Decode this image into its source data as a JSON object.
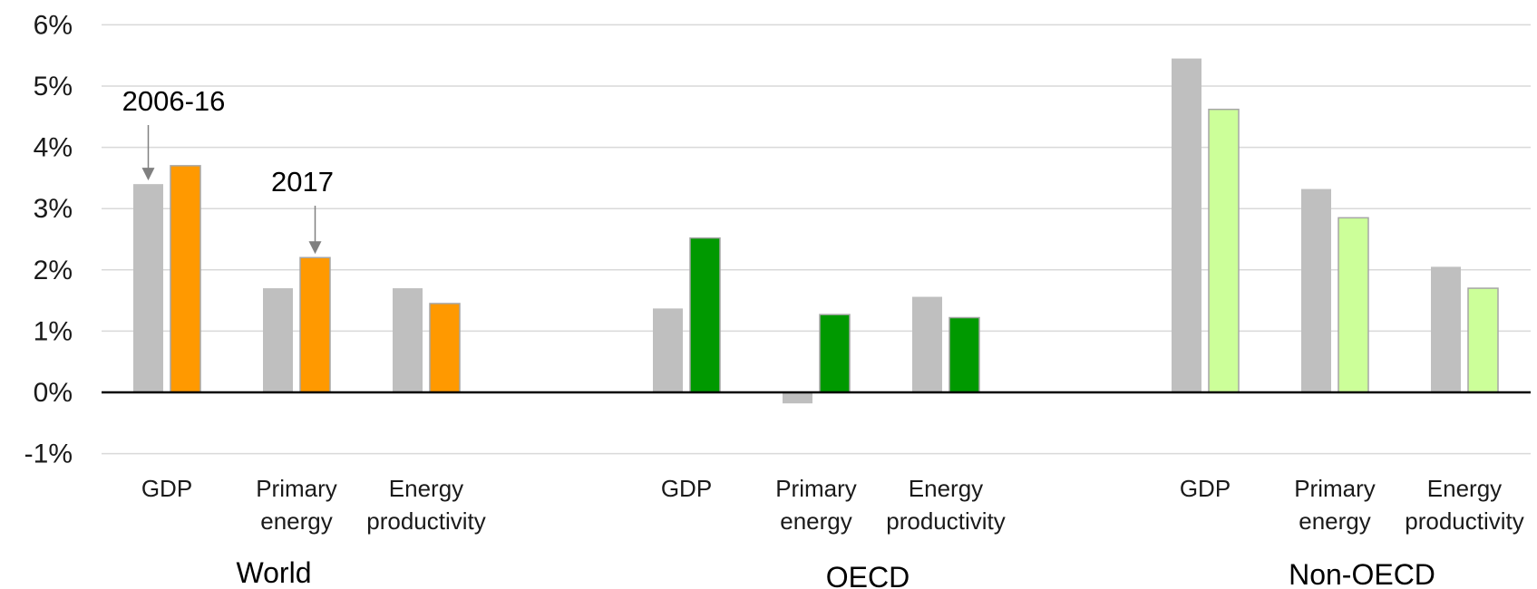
{
  "chart_data": {
    "type": "bar",
    "title": "",
    "xlabel": "",
    "ylabel": "",
    "ylim": [
      -1,
      6
    ],
    "yticks": [
      -1,
      0,
      1,
      2,
      3,
      4,
      5,
      6
    ],
    "ytick_labels": [
      "-1%",
      "0%",
      "1%",
      "2%",
      "3%",
      "4%",
      "5%",
      "6%"
    ],
    "grid": true,
    "legend": "none",
    "series": [
      {
        "name": "2006-16",
        "color": "#bfbfbf"
      },
      {
        "name": "2017",
        "colors_by_group": [
          "#ff9900",
          "#009900",
          "#ccff99"
        ]
      }
    ],
    "groups": [
      {
        "label": "World",
        "categories": [
          {
            "label_lines": [
              "GDP"
            ],
            "values": [
              3.4,
              3.7
            ]
          },
          {
            "label_lines": [
              "Primary",
              "energy"
            ],
            "values": [
              1.7,
              2.2
            ]
          },
          {
            "label_lines": [
              "Energy",
              "productivity"
            ],
            "values": [
              1.7,
              1.45
            ]
          }
        ]
      },
      {
        "label": "OECD",
        "categories": [
          {
            "label_lines": [
              "GDP"
            ],
            "values": [
              1.37,
              2.52
            ]
          },
          {
            "label_lines": [
              "Primary",
              "energy"
            ],
            "values": [
              -0.18,
              1.27
            ]
          },
          {
            "label_lines": [
              "Energy",
              "productivity"
            ],
            "values": [
              1.56,
              1.22
            ]
          }
        ]
      },
      {
        "label": "Non-OECD",
        "categories": [
          {
            "label_lines": [
              "GDP"
            ],
            "values": [
              5.45,
              4.62
            ]
          },
          {
            "label_lines": [
              "Primary",
              "energy"
            ],
            "values": [
              3.32,
              2.85
            ]
          },
          {
            "label_lines": [
              "Energy",
              "productivity"
            ],
            "values": [
              2.05,
              1.7
            ]
          }
        ]
      }
    ],
    "annotations": [
      {
        "text": "2006-16",
        "target": "World GDP 2006-16 bar"
      },
      {
        "text": "2017",
        "target": "World Primary energy 2017 bar"
      }
    ]
  }
}
